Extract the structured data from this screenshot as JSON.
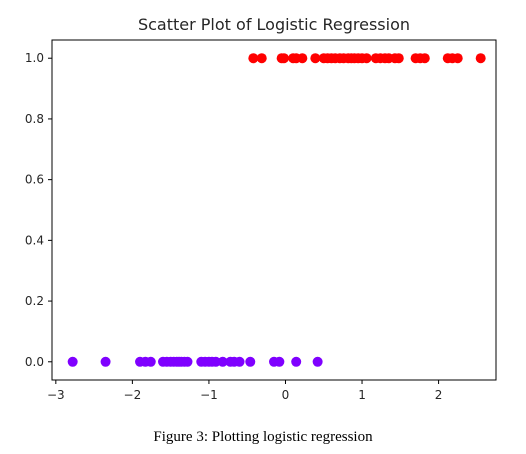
{
  "chart_data": {
    "type": "scatter",
    "title": "Scatter Plot of Logistic Regression",
    "xlabel": "",
    "ylabel": "",
    "xlim": [
      -3.05,
      2.75
    ],
    "ylim": [
      -0.06,
      1.06
    ],
    "x_ticks": [
      -3,
      -2,
      -1,
      0,
      1,
      2
    ],
    "x_tick_labels": [
      "−3",
      "−2",
      "−1",
      "0",
      "1",
      "2"
    ],
    "y_ticks": [
      0.0,
      0.2,
      0.4,
      0.6,
      0.8,
      1.0
    ],
    "y_tick_labels": [
      "0.0",
      "0.2",
      "0.4",
      "0.6",
      "0.8",
      "1.0"
    ],
    "grid": false,
    "series": [
      {
        "color": "#7f00ff",
        "y": 0,
        "x": [
          -2.78,
          -2.35,
          -1.9,
          -1.83,
          -1.76,
          -1.6,
          -1.55,
          -1.5,
          -1.46,
          -1.42,
          -1.39,
          -1.36,
          -1.32,
          -1.28,
          -1.1,
          -1.05,
          -1.0,
          -0.96,
          -0.91,
          -0.82,
          -0.72,
          -0.67,
          -0.6,
          -0.46,
          -0.15,
          -0.08,
          0.14,
          0.42
        ]
      },
      {
        "color": "#ff0000",
        "y": 1,
        "x": [
          -0.42,
          -0.31,
          -0.05,
          -0.02,
          0.1,
          0.14,
          0.22,
          0.39,
          0.5,
          0.55,
          0.6,
          0.65,
          0.71,
          0.76,
          0.82,
          0.86,
          0.9,
          0.95,
          1.0,
          1.06,
          1.18,
          1.24,
          1.3,
          1.35,
          1.43,
          1.48,
          1.7,
          1.76,
          1.82,
          2.12,
          2.18,
          2.25,
          2.55
        ]
      }
    ]
  },
  "caption": "Figure 3: Plotting logistic regression"
}
